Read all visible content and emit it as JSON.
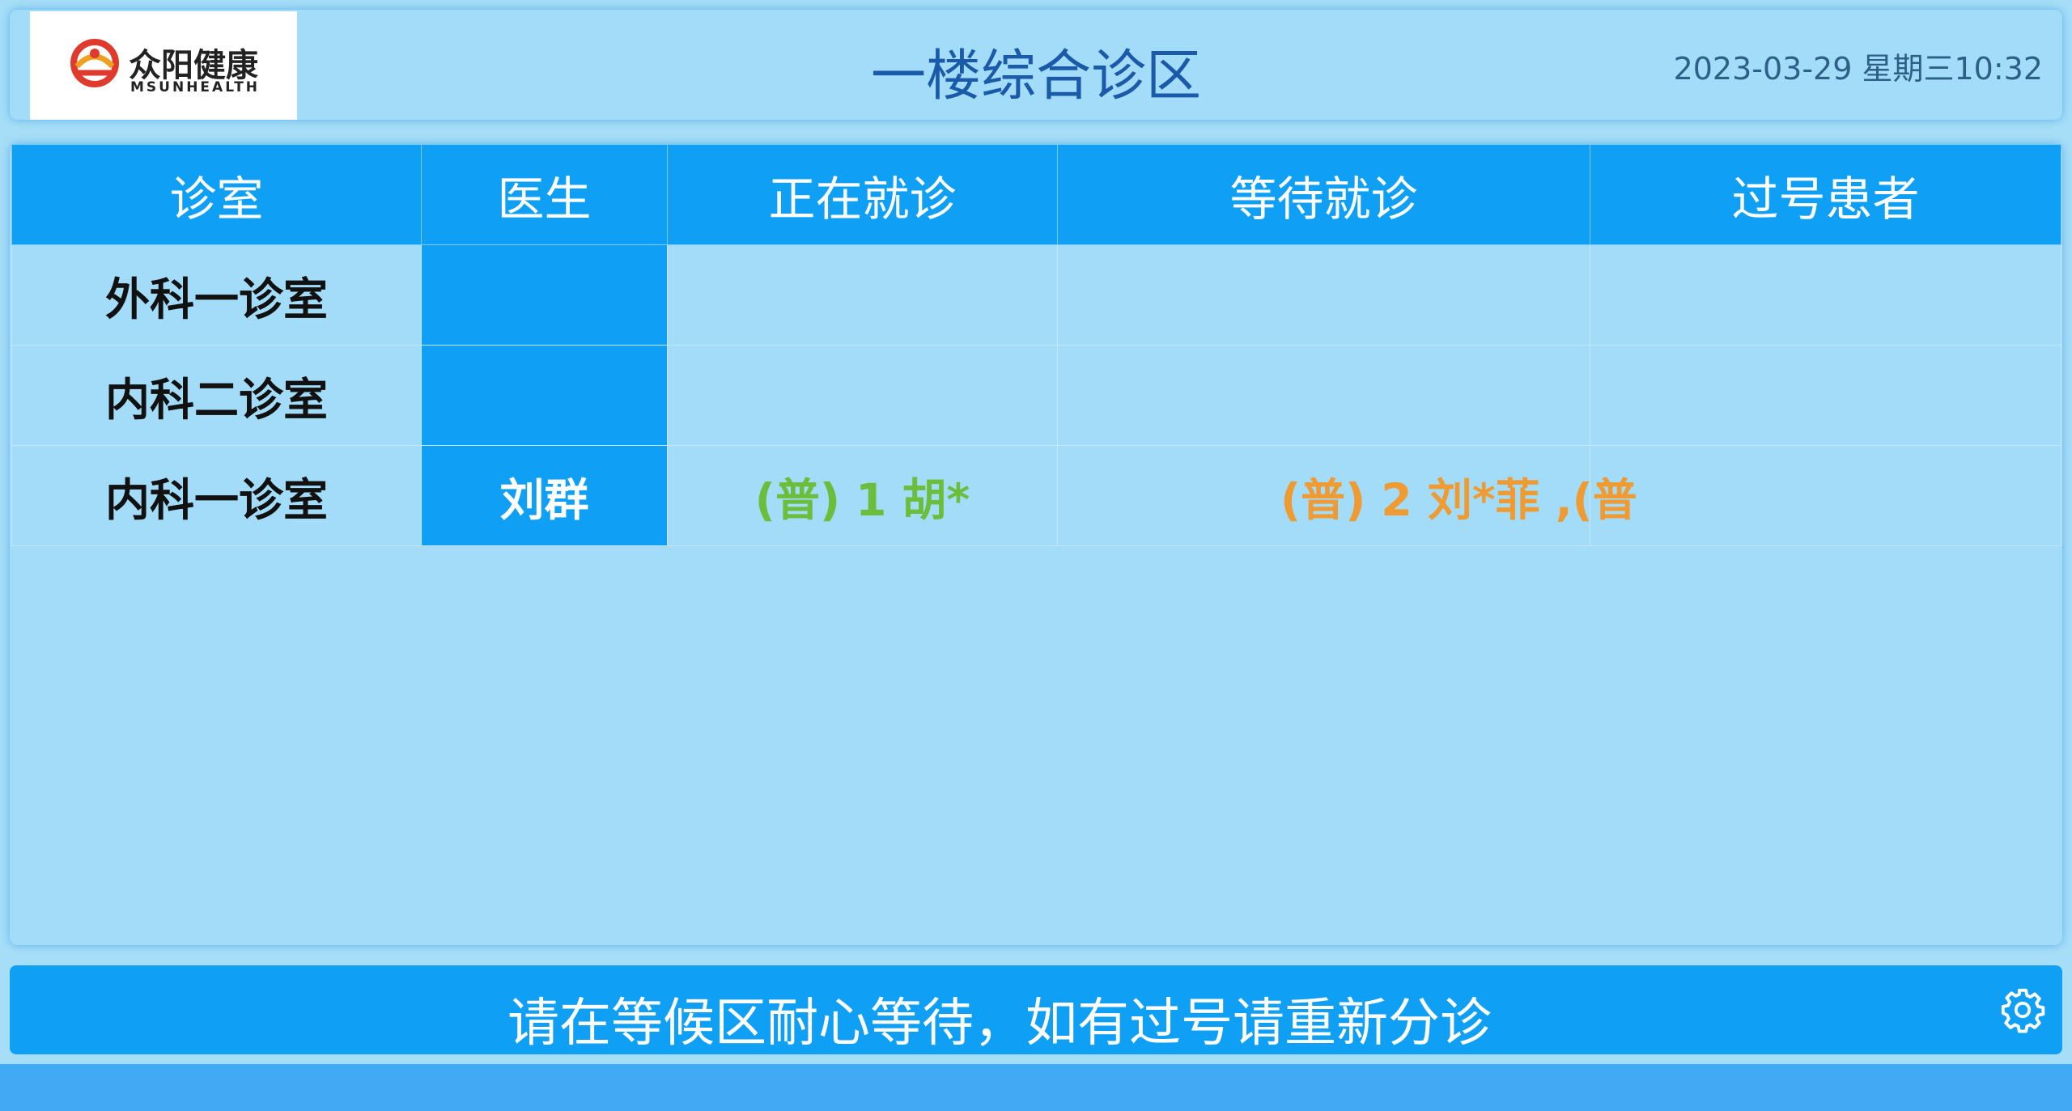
{
  "header": {
    "logo_cn": "众阳健康",
    "logo_en": "MSUNHEALTH",
    "title": "一楼综合诊区",
    "datetime": "2023-03-29 星期三10:32"
  },
  "table": {
    "columns": [
      "诊室",
      "医生",
      "正在就诊",
      "等待就诊",
      "过号患者"
    ],
    "rows": [
      {
        "room": "外科一诊室",
        "doctor": "",
        "current": "",
        "waiting": "",
        "missed": ""
      },
      {
        "room": "内科二诊室",
        "doctor": "",
        "current": "",
        "waiting": "",
        "missed": ""
      },
      {
        "room": "内科一诊室",
        "doctor": "刘群",
        "current": "(普) 1 胡*",
        "waiting": "(普) 2 刘*菲 ,(普",
        "missed": ""
      }
    ]
  },
  "footer": {
    "notice": "请在等候区耐心等待，如有过号请重新分诊",
    "settings_icon": "gear-icon"
  },
  "colors": {
    "header_bg": "#a2dcf8",
    "accent_blue": "#0fa0f6",
    "title_blue": "#1a5aa8",
    "current_green": "#6bbd3b",
    "waiting_orange": "#f09a32",
    "logo_red": "#e03a2f"
  }
}
